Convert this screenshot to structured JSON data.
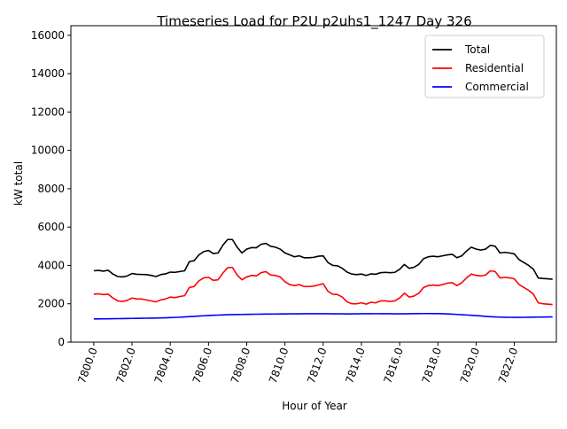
{
  "chart_data": {
    "type": "line",
    "title": "Timeseries Load for P2U p2uhs1_1247  Day 326",
    "xlabel": "Hour of Year",
    "ylabel": "kW total",
    "xlim": [
      7798.8,
      7824.2
    ],
    "ylim": [
      0,
      16500
    ],
    "x_ticks": [
      7800,
      7802,
      7804,
      7806,
      7808,
      7810,
      7812,
      7814,
      7816,
      7818,
      7820,
      7822
    ],
    "x_tick_labels": [
      "7800.0",
      "7802.0",
      "7804.0",
      "7806.0",
      "7808.0",
      "7810.0",
      "7812.0",
      "7814.0",
      "7816.0",
      "7818.0",
      "7820.0",
      "7822.0"
    ],
    "y_ticks": [
      0,
      2000,
      4000,
      6000,
      8000,
      10000,
      12000,
      14000,
      16000
    ],
    "y_tick_labels": [
      "0",
      "2000",
      "4000",
      "6000",
      "8000",
      "10000",
      "12000",
      "14000",
      "16000"
    ],
    "grid": false,
    "legend_position": "top-right",
    "x_start": 7800,
    "x_step": 0.25,
    "series": [
      {
        "name": "Total",
        "color": "#000000",
        "values": [
          3720,
          3740,
          3700,
          3750,
          3550,
          3420,
          3400,
          3450,
          3580,
          3540,
          3530,
          3520,
          3480,
          3420,
          3520,
          3560,
          3650,
          3640,
          3680,
          3720,
          4200,
          4250,
          4550,
          4720,
          4780,
          4620,
          4650,
          5050,
          5350,
          5350,
          4950,
          4650,
          4850,
          4930,
          4920,
          5100,
          5150,
          5000,
          4950,
          4850,
          4650,
          4550,
          4450,
          4500,
          4400,
          4400,
          4420,
          4480,
          4500,
          4150,
          4000,
          3980,
          3850,
          3650,
          3550,
          3520,
          3550,
          3480,
          3560,
          3540,
          3620,
          3640,
          3620,
          3640,
          3800,
          4050,
          3850,
          3900,
          4050,
          4350,
          4450,
          4480,
          4450,
          4500,
          4550,
          4580,
          4400,
          4500,
          4750,
          4950,
          4850,
          4800,
          4850,
          5050,
          5000,
          4650,
          4680,
          4650,
          4600,
          4300,
          4150,
          4000,
          3800,
          3350,
          3320,
          3300,
          3280
        ]
      },
      {
        "name": "Residential",
        "color": "#ff0000",
        "values": [
          2500,
          2520,
          2480,
          2500,
          2300,
          2150,
          2120,
          2180,
          2300,
          2250,
          2250,
          2200,
          2150,
          2100,
          2200,
          2250,
          2350,
          2320,
          2380,
          2420,
          2850,
          2900,
          3200,
          3350,
          3380,
          3220,
          3250,
          3600,
          3880,
          3900,
          3500,
          3250,
          3400,
          3480,
          3450,
          3620,
          3680,
          3500,
          3480,
          3400,
          3150,
          3000,
          2950,
          3000,
          2900,
          2900,
          2920,
          2980,
          3050,
          2650,
          2500,
          2480,
          2350,
          2100,
          2000,
          2000,
          2050,
          1980,
          2080,
          2050,
          2150,
          2150,
          2120,
          2150,
          2300,
          2550,
          2350,
          2400,
          2550,
          2850,
          2950,
          2980,
          2950,
          3000,
          3080,
          3100,
          2950,
          3100,
          3350,
          3550,
          3480,
          3450,
          3500,
          3720,
          3680,
          3350,
          3380,
          3350,
          3300,
          3000,
          2850,
          2700,
          2500,
          2050,
          2000,
          1980,
          1960
        ]
      },
      {
        "name": "Commercial",
        "color": "#0000ff",
        "values": [
          1210,
          1212,
          1215,
          1218,
          1222,
          1225,
          1228,
          1232,
          1236,
          1240,
          1244,
          1248,
          1252,
          1258,
          1264,
          1270,
          1278,
          1288,
          1300,
          1315,
          1330,
          1345,
          1360,
          1375,
          1390,
          1400,
          1410,
          1420,
          1428,
          1435,
          1440,
          1444,
          1448,
          1452,
          1456,
          1460,
          1463,
          1466,
          1468,
          1470,
          1472,
          1474,
          1476,
          1478,
          1480,
          1481,
          1482,
          1482,
          1482,
          1480,
          1478,
          1476,
          1474,
          1472,
          1474,
          1476,
          1480,
          1482,
          1484,
          1485,
          1484,
          1482,
          1480,
          1478,
          1476,
          1478,
          1482,
          1486,
          1488,
          1490,
          1490,
          1488,
          1486,
          1480,
          1470,
          1460,
          1445,
          1430,
          1415,
          1400,
          1385,
          1365,
          1345,
          1328,
          1315,
          1305,
          1298,
          1294,
          1292,
          1292,
          1294,
          1298,
          1302,
          1306,
          1310,
          1312,
          1312
        ]
      }
    ]
  }
}
